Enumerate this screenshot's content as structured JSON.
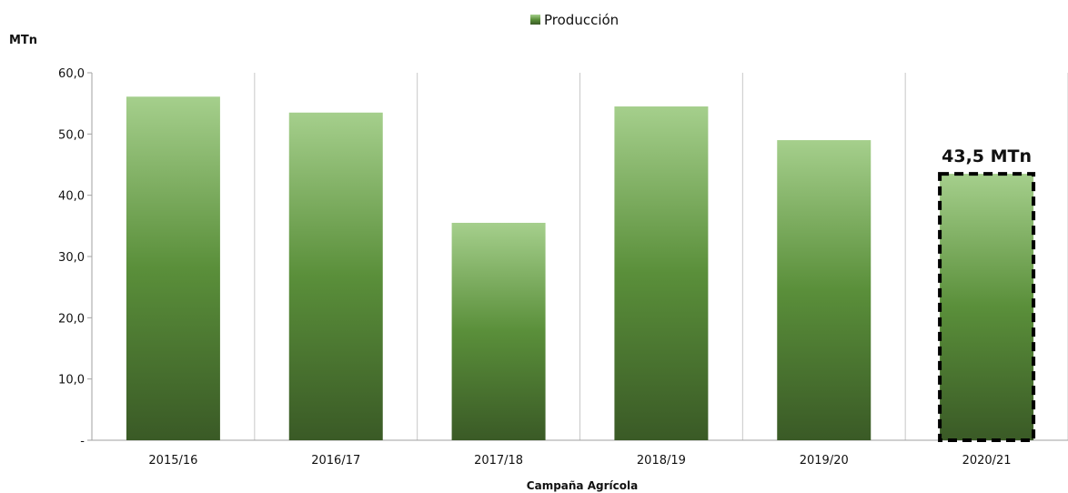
{
  "chart_data": {
    "type": "bar",
    "categories": [
      "2015/16",
      "2016/17",
      "2017/18",
      "2018/19",
      "2019/20",
      "2020/21"
    ],
    "series": [
      {
        "name": "Producción",
        "values": [
          56.1,
          53.5,
          35.5,
          54.5,
          49.0,
          43.5
        ]
      }
    ],
    "xlabel": "Campaña Agrícola",
    "ylabel": "MTn",
    "ylim": [
      0,
      60
    ],
    "yticks": [
      0,
      10,
      20,
      30,
      40,
      50,
      60
    ],
    "ytick_labels": [
      "-",
      "10,0",
      "20,0",
      "30,0",
      "40,0",
      "50,0",
      "60,0"
    ],
    "grid": "vertical",
    "legend": "top-center",
    "highlight": {
      "category": "2020/21",
      "label": "43,5 MTn",
      "style": "dashed-outline"
    },
    "colors": {
      "bar_top": "#a5cf8c",
      "bar_mid": "#5a8f3a",
      "bar_bottom": "#3a5a26",
      "grid": "#c8c8c8",
      "axis": "#a0a0a0"
    }
  }
}
